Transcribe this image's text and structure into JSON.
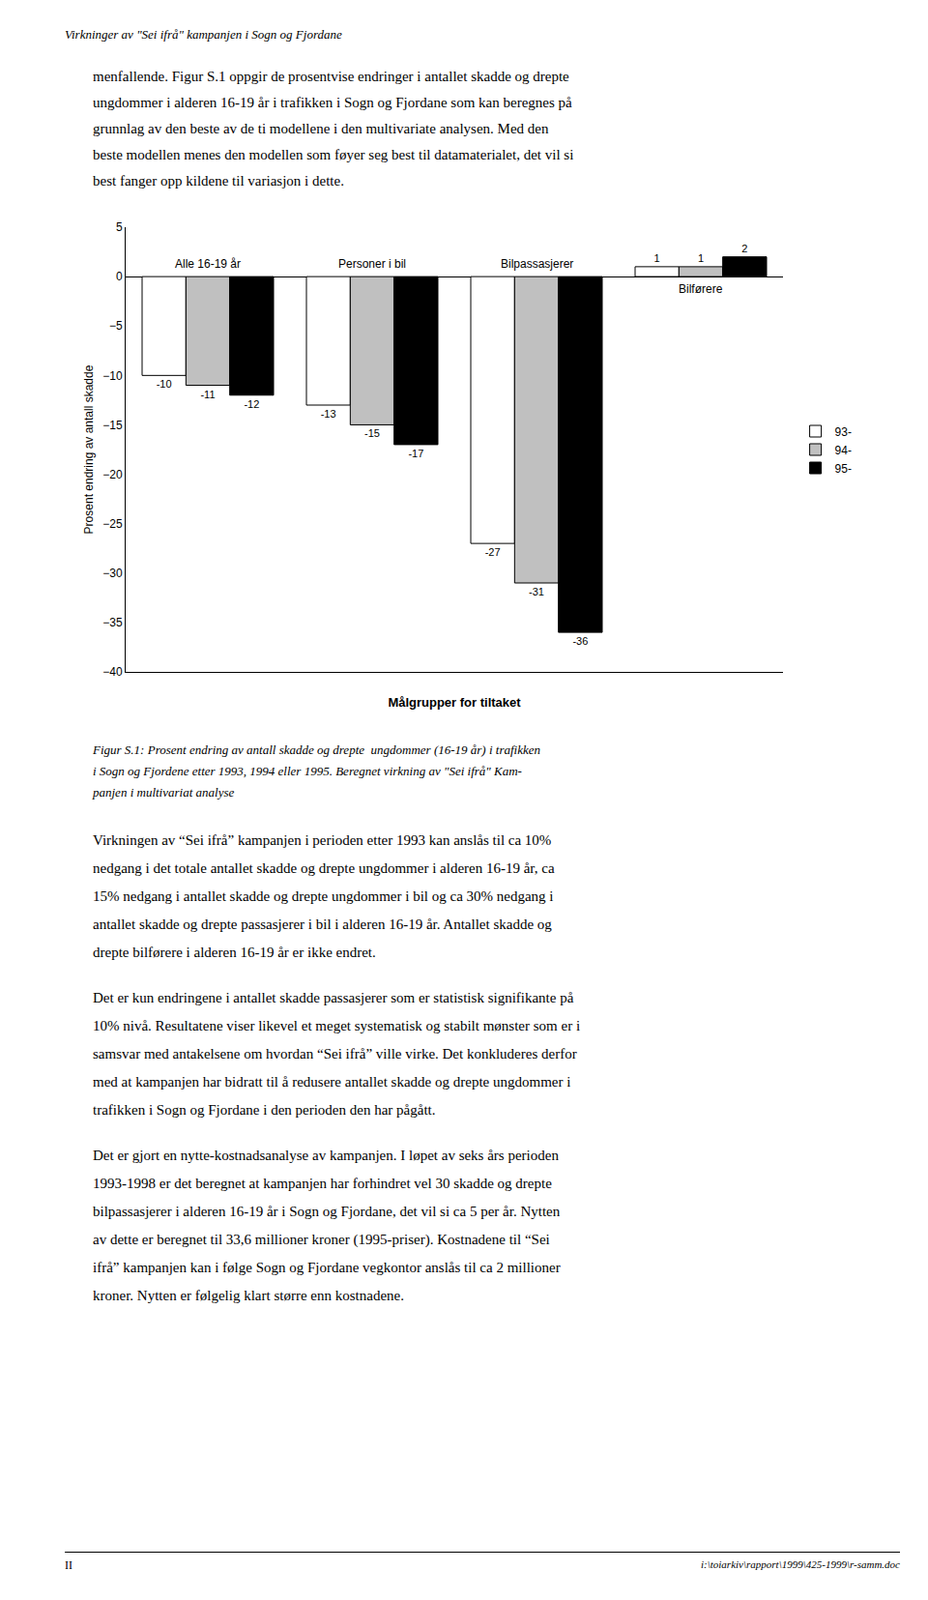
{
  "page_title": "Virkninger av \"Sei ifrå\" kampanjen i Sogn og Fjordane",
  "text_above": "menfallende. Figur S.1 oppgir de prosentvise endringer i antallet skadde og drepte\nungdommer i alderen 16-19 år i trafikken i Sogn og Fjordane som kan beregnes på\ngrunnlag av den beste av de ti modellene i den multivariate analysen. Med den\nbeste modellen menes den modellen som føyer seg best til datamaterialet, det vil si\nbest fanger opp kildene til variasjon i dette.",
  "caption": "Figur S.1: Prosent endring av antall skadde og drepte  ungdommer (16-19 år) i trafikken\ni Sogn og Fjordene etter 1993, 1994 eller 1995. Beregnet virkning av \"Sei ifrå\" Kam-\npanjen i multivariat analyse",
  "text_below": [
    "Virkningen av “Sei ifrå” kampanjen i perioden etter 1993 kan anslås til ca 10%\nnedgang i det totale antallet skadde og drepte ungdommer i alderen 16-19 år, ca\n15% nedgang i antallet skadde og drepte ungdommer i bil og ca 30% nedgang i\nantallet skadde og drepte passasjerer i bil i alderen 16-19 år. Antallet skadde og\ndrepte bilførere i alderen 16-19 år er ikke endret.",
    "Det er kun endringene i antallet skadde passasjerer som er statistisk signifikante på\n10% nivå. Resultatene viser likevel et meget systematisk og stabilt mønster som er i\nsamsvar med antakelsene om hvordan “Sei ifrå” ville virke. Det konkluderes derfor\nmed at kampanjen har bidratt til å redusere antallet skadde og drepte ungdommer i\ntrafikken i Sogn og Fjordane i den perioden den har pågått.",
    "Det er gjort en nytte-kostnadsanalyse av kampanjen. I løpet av seks års perioden\n1993-1998 er det beregnet at kampanjen har forhindret vel 30 skadde og drepte\nbilpassasjerer i alderen 16-19 år i Sogn og Fjordane, det vil si ca 5 per år. Nytten\nav dette er beregnet til 33,6 millioner kroner (1995-priser). Kostnadene til “Sei\nifrå” kampanjen kan i følge Sogn og Fjordane vegkontor anslås til ca 2 millioner\nkroner. Nytten er følgelig klart større enn kostnadene."
  ],
  "footer_left": "II",
  "footer_right": "i:\\toiarkiv\\rapport\\1999\\425-1999\\r-samm.doc",
  "chart_data": {
    "type": "bar",
    "categories": [
      "Alle 16-19 år",
      "Personer i bil",
      "Bilpassasjerer",
      "Bilførere"
    ],
    "series": [
      {
        "name": "93-",
        "color": "#ffffff",
        "values": [
          -10,
          -13,
          -27,
          1
        ]
      },
      {
        "name": "94-",
        "color": "#c0c0c0",
        "values": [
          -11,
          -15,
          -31,
          1
        ]
      },
      {
        "name": "95-",
        "color": "#000000",
        "values": [
          -12,
          -17,
          -36,
          2
        ]
      }
    ],
    "xlabel": "Målgrupper for tiltaket",
    "ylabel": "Prosent endring av antall skadde",
    "ylim": [
      -40,
      5
    ],
    "yticks": [
      5,
      0,
      -5,
      -10,
      -15,
      -20,
      -25,
      -30,
      -35,
      -40
    ],
    "data_labels": true,
    "tick_labels": "y",
    "grid": false,
    "legend": "right"
  }
}
